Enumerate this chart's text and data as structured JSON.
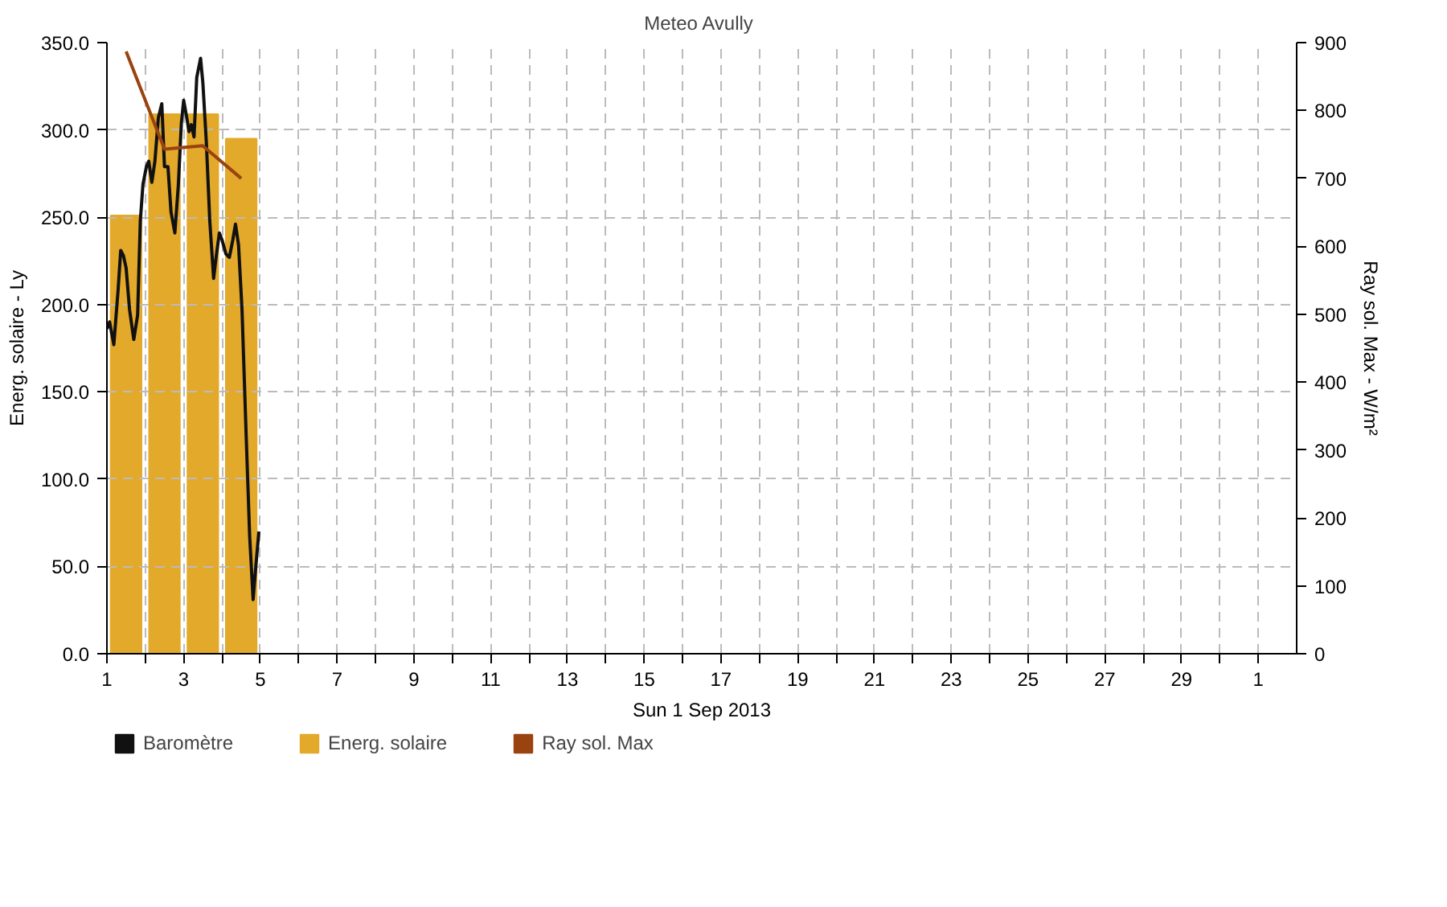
{
  "chart_data": {
    "type": "line",
    "title": "Meteo  Avully",
    "xlabel": "Sun 1 Sep 2013",
    "ylabel": "Energ. solaire - Ly",
    "y2label": "Ray sol. Max - W/m²",
    "xlim": [
      "2013-09-01",
      "2013-10-02"
    ],
    "xticks": [
      {
        "value": "2013-09-01",
        "label": "1"
      },
      {
        "value": "2013-09-02",
        "label": null
      },
      {
        "value": "2013-09-03",
        "label": "3"
      },
      {
        "value": "2013-09-04",
        "label": null
      },
      {
        "value": "2013-09-05",
        "label": "5"
      },
      {
        "value": "2013-09-06",
        "label": null
      },
      {
        "value": "2013-09-07",
        "label": "7"
      },
      {
        "value": "2013-09-08",
        "label": null
      },
      {
        "value": "2013-09-09",
        "label": "9"
      },
      {
        "value": "2013-09-10",
        "label": null
      },
      {
        "value": "2013-09-11",
        "label": "11"
      },
      {
        "value": "2013-09-12",
        "label": null
      },
      {
        "value": "2013-09-13",
        "label": "13"
      },
      {
        "value": "2013-09-14",
        "label": null
      },
      {
        "value": "2013-09-15",
        "label": "15"
      },
      {
        "value": "2013-09-16",
        "label": null
      },
      {
        "value": "2013-09-17",
        "label": "17"
      },
      {
        "value": "2013-09-18",
        "label": null
      },
      {
        "value": "2013-09-19",
        "label": "19"
      },
      {
        "value": "2013-09-20",
        "label": null
      },
      {
        "value": "2013-09-21",
        "label": "21"
      },
      {
        "value": "2013-09-22",
        "label": null
      },
      {
        "value": "2013-09-23",
        "label": "23"
      },
      {
        "value": "2013-09-24",
        "label": null
      },
      {
        "value": "2013-09-25",
        "label": "25"
      },
      {
        "value": "2013-09-26",
        "label": null
      },
      {
        "value": "2013-09-27",
        "label": "27"
      },
      {
        "value": "2013-09-28",
        "label": null
      },
      {
        "value": "2013-09-29",
        "label": "29"
      },
      {
        "value": "2013-09-30",
        "label": null
      },
      {
        "value": "2013-10-01",
        "label": "1"
      }
    ],
    "ylim": [
      0,
      350
    ],
    "yticks": [
      {
        "value": 0,
        "label": "0.0"
      },
      {
        "value": 50,
        "label": "50.0"
      },
      {
        "value": 100,
        "label": "100.0"
      },
      {
        "value": 150,
        "label": "150.0"
      },
      {
        "value": 200,
        "label": "200.0"
      },
      {
        "value": 250,
        "label": "250.0"
      },
      {
        "value": 300,
        "label": "300.0"
      },
      {
        "value": 350,
        "label": "350.0"
      }
    ],
    "y2lim": [
      0,
      900
    ],
    "y2ticks": [
      0,
      100,
      200,
      300,
      400,
      500,
      600,
      700,
      800,
      900
    ],
    "grid": true,
    "legend": "bottom",
    "series": [
      {
        "name": "Baromètre",
        "color": "#111111",
        "x": [
          "2013-09-01T00:00",
          "2013-09-01T01:41",
          "2013-09-01T04:19",
          "2013-09-01T06:58",
          "2013-09-01T08:38",
          "2013-09-01T10:19",
          "2013-09-01T12:00",
          "2013-09-01T14:10",
          "2013-09-01T16:48",
          "2013-09-01T19:12",
          "2013-09-01T20:53",
          "2013-09-01T22:34",
          "2013-09-02T00:43",
          "2013-09-02T02:10",
          "2013-09-02T04:05",
          "2013-09-02T06:00",
          "2013-09-02T08:10",
          "2013-09-02T10:19",
          "2013-09-02T12:00",
          "2013-09-02T14:10",
          "2013-09-02T16:05",
          "2013-09-02T18:29",
          "2013-09-02T20:38",
          "2013-09-02T22:34",
          "2013-09-03T00:00",
          "2013-09-03T01:55",
          "2013-09-03T03:22",
          "2013-09-03T04:48",
          "2013-09-03T06:29",
          "2013-09-03T08:10",
          "2013-09-03T10:34",
          "2013-09-03T12:00",
          "2013-09-03T14:10",
          "2013-09-03T16:19",
          "2013-09-03T18:43",
          "2013-09-03T20:24",
          "2013-09-03T22:19",
          "2013-09-04T00:00",
          "2013-09-04T02:24",
          "2013-09-04T04:34",
          "2013-09-04T06:43",
          "2013-09-04T08:24",
          "2013-09-04T10:19",
          "2013-09-04T12:29",
          "2013-09-04T15:07",
          "2013-09-04T17:17",
          "2013-09-04T19:26",
          "2013-09-04T21:07",
          "2013-09-04T23:02"
        ],
        "values": [
          186,
          190,
          177,
          208,
          231,
          228,
          221,
          197,
          180,
          194,
          248,
          269,
          279,
          282,
          270,
          282,
          307,
          315,
          279,
          279,
          253,
          241,
          268,
          304,
          317,
          307,
          299,
          303,
          296,
          330,
          341,
          327,
          293,
          248,
          215,
          228,
          241,
          237,
          229,
          227,
          237,
          246,
          234,
          197,
          124,
          67,
          31,
          50,
          70
        ]
      },
      {
        "type": "bar",
        "name": "Energ. solaire",
        "color": "#e3a92a",
        "x": [
          "2013-09-01T12:00",
          "2013-09-02T12:00",
          "2013-09-03T12:00",
          "2013-09-04T12:00"
        ],
        "values": [
          251,
          309,
          309,
          295
        ]
      },
      {
        "name": "Ray sol. Max",
        "color": "#9a4310",
        "axis": "y2",
        "x": [
          "2013-09-01T12:00",
          "2013-09-02T12:00",
          "2013-09-03T12:00",
          "2013-09-04T12:00"
        ],
        "values": [
          887,
          743,
          748,
          700
        ]
      }
    ]
  }
}
